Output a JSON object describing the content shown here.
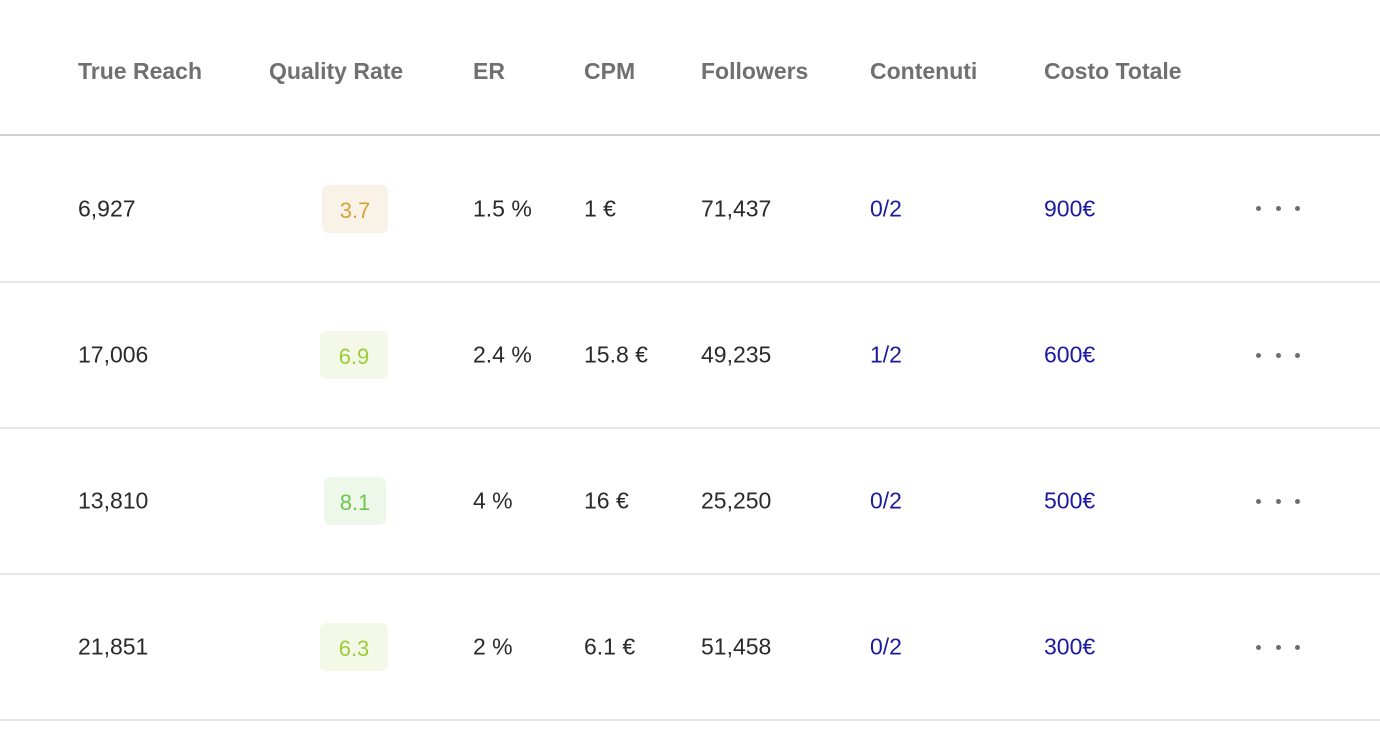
{
  "columns": {
    "true_reach": "True Reach",
    "quality_rate": "Quality Rate",
    "er": "ER",
    "cpm": "CPM",
    "followers": "Followers",
    "contenuti": "Contenuti",
    "costo_totale": "Costo Totale"
  },
  "colors": {
    "header_text": "#707070",
    "body_text": "#2a2a2a",
    "link_blue": "#1c1aa0",
    "quality_orange_text": "#d4a23c",
    "quality_orange_bg": "#f8f3e6",
    "quality_lime_text": "#9ccc3a",
    "quality_lime_bg": "#f3f9e6",
    "quality_green_text": "#6cc84a",
    "quality_green_bg": "#eef8ea"
  },
  "rows": [
    {
      "true_reach": "6,927",
      "quality_rate": "3.7",
      "er": "1.5 %",
      "cpm": "1 €",
      "followers": "71,437",
      "contenuti": "0/2",
      "costo_totale": "900€",
      "menu_icon": "more-horizontal-icon"
    },
    {
      "true_reach": "17,006",
      "quality_rate": "6.9",
      "er": "2.4 %",
      "cpm": "15.8 €",
      "followers": "49,235",
      "contenuti": "1/2",
      "costo_totale": "600€",
      "menu_icon": "more-horizontal-icon"
    },
    {
      "true_reach": "13,810",
      "quality_rate": "8.1",
      "er": "4 %",
      "cpm": "16 €",
      "followers": "25,250",
      "contenuti": "0/2",
      "costo_totale": "500€",
      "menu_icon": "more-horizontal-icon"
    },
    {
      "true_reach": "21,851",
      "quality_rate": "6.3",
      "er": "2 %",
      "cpm": "6.1 €",
      "followers": "51,458",
      "contenuti": "0/2",
      "costo_totale": "300€",
      "menu_icon": "more-horizontal-icon"
    }
  ]
}
